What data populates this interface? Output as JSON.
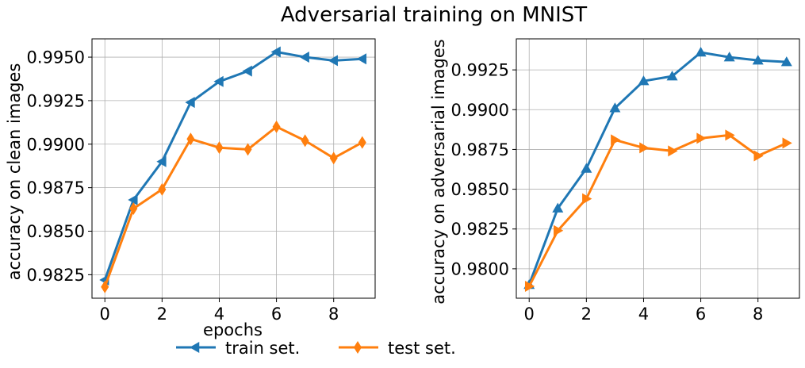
{
  "figure": {
    "title": "Adversarial training on MNIST",
    "legend": {
      "placement": "bottom-center",
      "entries": [
        {
          "label": "train set.",
          "color": "#1f77b4",
          "marker": "triangle-left"
        },
        {
          "label": "test set.",
          "color": "#ff7f0e",
          "marker": "diamond"
        }
      ]
    }
  },
  "chart_data": [
    {
      "type": "line",
      "xlabel": "epochs",
      "ylabel": "accuracy on clean images",
      "grid": true,
      "x": [
        0,
        1,
        2,
        3,
        4,
        5,
        6,
        7,
        8,
        9
      ],
      "xlim": [
        -0.45,
        9.45
      ],
      "ylim": [
        0.98115,
        0.99605
      ],
      "xticks": [
        0,
        2,
        4,
        6,
        8
      ],
      "xtick_labels": [
        "0",
        "2",
        "4",
        "6",
        "8"
      ],
      "yticks": [
        0.9825,
        0.985,
        0.9875,
        0.99,
        0.9925,
        0.995
      ],
      "ytick_labels": [
        "0.9825",
        "0.9850",
        "0.9875",
        "0.9900",
        "0.9925",
        "0.9950"
      ],
      "series": [
        {
          "name": "train set.",
          "color": "#1f77b4",
          "marker": "triangle-left",
          "values": [
            0.9822,
            0.9868,
            0.989,
            0.9924,
            0.9936,
            0.9942,
            0.9953,
            0.995,
            0.9948,
            0.9949
          ]
        },
        {
          "name": "test set.",
          "color": "#ff7f0e",
          "marker": "diamond",
          "values": [
            0.9818,
            0.9863,
            0.9874,
            0.9903,
            0.9898,
            0.9897,
            0.991,
            0.9902,
            0.9892,
            0.9901
          ]
        }
      ]
    },
    {
      "type": "line",
      "xlabel": "",
      "ylabel": "accuracy on adversarial images",
      "grid": true,
      "x": [
        0,
        1,
        2,
        3,
        4,
        5,
        6,
        7,
        8,
        9
      ],
      "xlim": [
        -0.45,
        9.45
      ],
      "ylim": [
        0.97815,
        0.99445
      ],
      "xticks": [
        0,
        2,
        4,
        6,
        8
      ],
      "xtick_labels": [
        "0",
        "2",
        "4",
        "6",
        "8"
      ],
      "yticks": [
        0.98,
        0.9825,
        0.985,
        0.9875,
        0.99,
        0.9925
      ],
      "ytick_labels": [
        "0.9800",
        "0.9825",
        "0.9850",
        "0.9875",
        "0.9900",
        "0.9925"
      ],
      "series": [
        {
          "name": "train set.",
          "color": "#1f77b4",
          "marker": "triangle-up",
          "values": [
            0.979,
            0.9838,
            0.9863,
            0.9901,
            0.9918,
            0.9921,
            0.9936,
            0.9933,
            0.9931,
            0.993
          ]
        },
        {
          "name": "test set.",
          "color": "#ff7f0e",
          "marker": "triangle-right",
          "values": [
            0.9789,
            0.9824,
            0.9844,
            0.9881,
            0.9876,
            0.9874,
            0.9882,
            0.9884,
            0.9871,
            0.9879
          ]
        }
      ]
    }
  ]
}
